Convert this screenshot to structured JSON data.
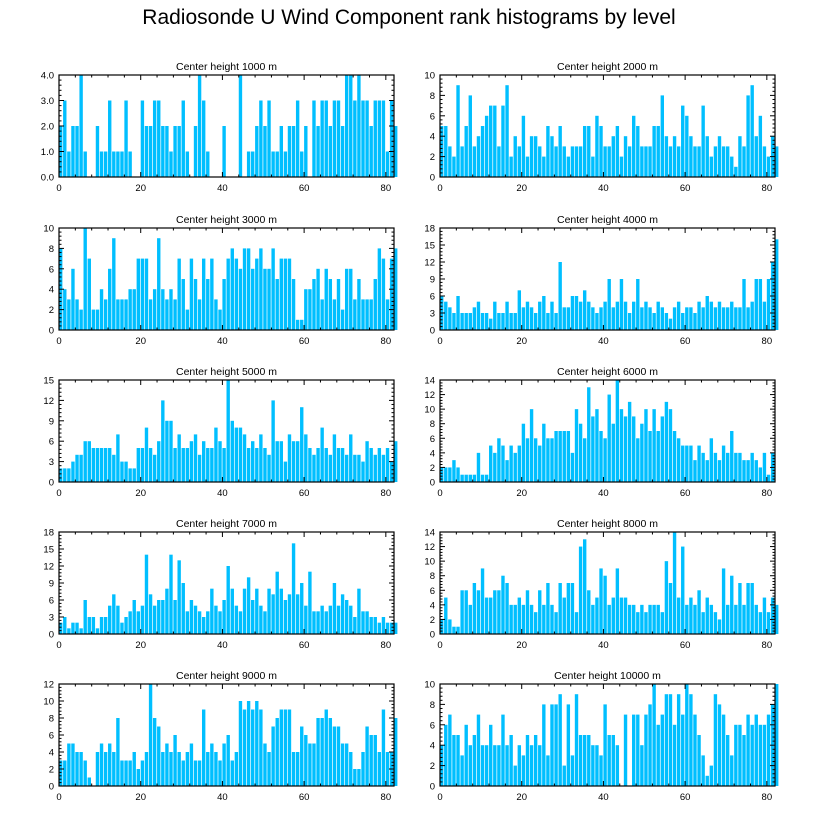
{
  "page": {
    "title": "Radiosonde U Wind Component rank histograms by level"
  },
  "colors": {
    "bar": "#00bfff",
    "axis": "#000000",
    "background": "#ffffff"
  },
  "chart_data": [
    {
      "type": "bar",
      "title": "Center height 1000 m",
      "xlim": [
        0,
        82
      ],
      "xticks": [
        0,
        20,
        40,
        60,
        80
      ],
      "ylim": [
        0,
        4
      ],
      "yticks": [
        0.0,
        1.0,
        2.0,
        3.0,
        4.0
      ],
      "ytick_labels": [
        "0.0",
        "1.0",
        "2.0",
        "3.0",
        "4.0"
      ],
      "values": [
        2,
        3,
        1,
        2,
        2,
        4,
        1,
        0,
        0,
        2,
        1,
        1,
        3,
        1,
        1,
        1,
        3,
        1,
        0,
        0,
        3,
        2,
        2,
        3,
        3,
        2,
        2,
        1,
        2,
        2,
        3,
        1,
        0,
        2,
        4,
        3,
        1,
        0,
        0,
        0,
        2,
        0,
        0,
        0,
        4,
        0,
        1,
        1,
        2,
        3,
        2,
        3,
        1,
        1,
        2,
        1,
        2,
        2,
        3,
        1,
        2,
        0,
        3,
        2,
        3,
        3,
        2,
        3,
        3,
        2,
        4,
        4,
        3,
        4,
        3,
        3,
        2,
        3,
        3,
        3,
        1,
        3,
        2
      ]
    },
    {
      "type": "bar",
      "title": "Center height 2000 m",
      "xlim": [
        0,
        82
      ],
      "xticks": [
        0,
        20,
        40,
        60,
        80
      ],
      "ylim": [
        0,
        10
      ],
      "yticks": [
        0,
        2,
        4,
        6,
        8,
        10
      ],
      "ytick_labels": [
        "0",
        "2",
        "4",
        "6",
        "8",
        "10"
      ],
      "values": [
        5,
        5,
        3,
        2,
        9,
        3,
        5,
        8,
        3,
        4,
        5,
        6,
        7,
        7,
        3,
        7,
        9,
        2,
        4,
        3,
        6,
        2,
        4,
        4,
        3,
        2,
        5,
        4,
        3,
        5,
        3,
        2,
        3,
        3,
        3,
        5,
        5,
        2,
        6,
        5,
        3,
        3,
        4,
        5,
        2,
        4,
        3,
        6,
        5,
        3,
        3,
        3,
        5,
        5,
        8,
        4,
        3,
        4,
        3,
        7,
        6,
        4,
        3,
        3,
        7,
        4,
        2,
        3,
        4,
        3,
        3,
        2,
        1,
        4,
        3,
        8,
        9,
        4,
        6,
        3,
        2,
        4,
        3
      ]
    },
    {
      "type": "bar",
      "title": "Center height 3000 m",
      "xlim": [
        0,
        82
      ],
      "xticks": [
        0,
        20,
        40,
        60,
        80
      ],
      "ylim": [
        0,
        10
      ],
      "yticks": [
        0,
        2,
        4,
        6,
        8,
        10
      ],
      "ytick_labels": [
        "0",
        "2",
        "4",
        "6",
        "8",
        "10"
      ],
      "values": [
        8,
        4,
        3,
        6,
        3,
        2,
        10,
        7,
        2,
        2,
        4,
        3,
        6,
        9,
        3,
        3,
        3,
        4,
        4,
        7,
        7,
        7,
        3,
        4,
        9,
        4,
        3,
        4,
        3,
        7,
        5,
        2,
        7,
        5,
        3,
        7,
        5,
        7,
        3,
        2,
        5,
        7,
        8,
        7,
        6,
        8,
        8,
        6,
        7,
        8,
        6,
        6,
        8,
        5,
        7,
        7,
        7,
        5,
        1,
        1,
        4,
        4,
        5,
        6,
        3,
        6,
        5,
        3,
        5,
        2,
        6,
        6,
        3,
        5,
        3,
        3,
        3,
        5,
        8,
        7,
        3,
        7,
        8
      ]
    },
    {
      "type": "bar",
      "title": "Center height 4000 m",
      "xlim": [
        0,
        82
      ],
      "xticks": [
        0,
        20,
        40,
        60,
        80
      ],
      "ylim": [
        0,
        18
      ],
      "yticks": [
        0,
        3,
        6,
        9,
        12,
        15,
        18
      ],
      "ytick_labels": [
        "0",
        "3",
        "6",
        "9",
        "12",
        "15",
        "18"
      ],
      "values": [
        6,
        5,
        4,
        3,
        6,
        3,
        3,
        3,
        4,
        5,
        3,
        3,
        2,
        5,
        3,
        3,
        5,
        3,
        3,
        7,
        4,
        5,
        4,
        3,
        5,
        6,
        3,
        5,
        3,
        12,
        4,
        4,
        6,
        6,
        5,
        7,
        5,
        4,
        3,
        4,
        5,
        9,
        4,
        5,
        9,
        5,
        3,
        5,
        9,
        4,
        5,
        4,
        3,
        5,
        4,
        3,
        2,
        4,
        5,
        3,
        4,
        4,
        3,
        5,
        4,
        6,
        5,
        4,
        5,
        4,
        4,
        5,
        4,
        4,
        9,
        4,
        5,
        9,
        9,
        5,
        9,
        12,
        16
      ]
    },
    {
      "type": "bar",
      "title": "Center height 5000 m",
      "xlim": [
        0,
        82
      ],
      "xticks": [
        0,
        20,
        40,
        60,
        80
      ],
      "ylim": [
        0,
        15
      ],
      "yticks": [
        0,
        3,
        6,
        9,
        12,
        15
      ],
      "ytick_labels": [
        "0",
        "3",
        "6",
        "9",
        "12",
        "15"
      ],
      "values": [
        2,
        2,
        2,
        3,
        4,
        4,
        6,
        6,
        5,
        5,
        5,
        5,
        5,
        4,
        7,
        3,
        3,
        2,
        2,
        5,
        5,
        8,
        5,
        4,
        6,
        12,
        9,
        9,
        5,
        7,
        5,
        5,
        6,
        7,
        4,
        6,
        5,
        5,
        8,
        6,
        5,
        15,
        9,
        8,
        8,
        7,
        5,
        6,
        5,
        7,
        5,
        4,
        12,
        6,
        6,
        3,
        7,
        6,
        6,
        11,
        7,
        5,
        4,
        5,
        8,
        5,
        4,
        7,
        5,
        5,
        4,
        7,
        4,
        4,
        3,
        6,
        5,
        4,
        5,
        4,
        5,
        3,
        6
      ]
    },
    {
      "type": "bar",
      "title": "Center height 6000 m",
      "xlim": [
        0,
        82
      ],
      "xticks": [
        0,
        20,
        40,
        60,
        80
      ],
      "ylim": [
        0,
        14
      ],
      "yticks": [
        0,
        2,
        4,
        6,
        8,
        10,
        12,
        14
      ],
      "ytick_labels": [
        "0",
        "2",
        "4",
        "6",
        "8",
        "10",
        "12",
        "14"
      ],
      "values": [
        2,
        2,
        2,
        3,
        2,
        1,
        1,
        1,
        1,
        4,
        1,
        1,
        5,
        4,
        6,
        5,
        3,
        5,
        4,
        5,
        8,
        6,
        10,
        6,
        5,
        8,
        6,
        6,
        7,
        7,
        7,
        7,
        4,
        10,
        8,
        6,
        13,
        9,
        10,
        7,
        6,
        12,
        8,
        14,
        10,
        9,
        11,
        9,
        6,
        8,
        10,
        7,
        10,
        7,
        9,
        11,
        10,
        7,
        6,
        5,
        5,
        5,
        3,
        5,
        4,
        3,
        6,
        4,
        3,
        5,
        4,
        7,
        4,
        4,
        3,
        3,
        4,
        3,
        2,
        4,
        1,
        4,
        0
      ]
    },
    {
      "type": "bar",
      "title": "Center height 7000 m",
      "xlim": [
        0,
        82
      ],
      "xticks": [
        0,
        20,
        40,
        60,
        80
      ],
      "ylim": [
        0,
        18
      ],
      "yticks": [
        0,
        3,
        6,
        9,
        12,
        15,
        18
      ],
      "ytick_labels": [
        "0",
        "3",
        "6",
        "9",
        "12",
        "15",
        "18"
      ],
      "values": [
        2,
        3,
        1,
        2,
        2,
        1,
        6,
        3,
        3,
        1,
        3,
        3,
        5,
        7,
        5,
        2,
        3,
        4,
        6,
        4,
        5,
        14,
        7,
        5,
        6,
        6,
        8,
        14,
        6,
        13,
        9,
        4,
        6,
        5,
        4,
        3,
        4,
        8,
        5,
        4,
        6,
        12,
        8,
        5,
        4,
        8,
        10,
        6,
        8,
        5,
        4,
        8,
        7,
        11,
        8,
        6,
        7,
        16,
        7,
        9,
        5,
        11,
        4,
        4,
        5,
        4,
        5,
        9,
        5,
        7,
        6,
        5,
        3,
        8,
        4,
        4,
        3,
        3,
        2,
        3,
        2,
        2,
        2
      ]
    },
    {
      "type": "bar",
      "title": "Center height 8000 m",
      "xlim": [
        0,
        82
      ],
      "xticks": [
        0,
        20,
        40,
        60,
        80
      ],
      "ylim": [
        0,
        14
      ],
      "yticks": [
        0,
        2,
        4,
        6,
        8,
        10,
        12,
        14
      ],
      "ytick_labels": [
        "0",
        "2",
        "4",
        "6",
        "8",
        "10",
        "12",
        "14"
      ],
      "values": [
        2,
        5,
        2,
        1,
        1,
        6,
        6,
        4,
        7,
        6,
        9,
        5,
        5,
        6,
        6,
        8,
        7,
        4,
        4,
        5,
        4,
        6,
        4,
        3,
        6,
        4,
        7,
        4,
        3,
        7,
        5,
        7,
        7,
        3,
        12,
        13,
        6,
        4,
        5,
        9,
        8,
        4,
        5,
        9,
        5,
        5,
        4,
        4,
        3,
        4,
        3,
        4,
        4,
        4,
        3,
        10,
        7,
        14,
        5,
        12,
        4,
        5,
        4,
        6,
        3,
        5,
        4,
        3,
        2,
        9,
        4,
        8,
        4,
        7,
        4,
        7,
        7,
        4,
        3,
        5,
        3,
        5,
        4
      ]
    },
    {
      "type": "bar",
      "title": "Center height 9000 m",
      "xlim": [
        0,
        82
      ],
      "xticks": [
        0,
        20,
        40,
        60,
        80
      ],
      "ylim": [
        0,
        12
      ],
      "yticks": [
        0,
        2,
        4,
        6,
        8,
        10,
        12
      ],
      "ytick_labels": [
        "0",
        "2",
        "4",
        "6",
        "8",
        "10",
        "12"
      ],
      "values": [
        3,
        3,
        5,
        5,
        4,
        4,
        3,
        1,
        0,
        4,
        5,
        4,
        5,
        4,
        8,
        3,
        3,
        3,
        4,
        2,
        3,
        4,
        12,
        8,
        7,
        4,
        5,
        4,
        6,
        4,
        3,
        4,
        5,
        3,
        3,
        9,
        4,
        5,
        4,
        3,
        5,
        6,
        3,
        4,
        10,
        9,
        10,
        9,
        10,
        9,
        5,
        4,
        7,
        8,
        9,
        9,
        9,
        4,
        4,
        7,
        6,
        5,
        5,
        8,
        8,
        9,
        8,
        7,
        7,
        5,
        5,
        4,
        2,
        2,
        4,
        7,
        6,
        6,
        4,
        9,
        4,
        4,
        8
      ]
    },
    {
      "type": "bar",
      "title": "Center height 10000 m",
      "xlim": [
        0,
        82
      ],
      "xticks": [
        0,
        20,
        40,
        60,
        80
      ],
      "ylim": [
        0,
        10
      ],
      "yticks": [
        0,
        2,
        4,
        6,
        8,
        10
      ],
      "ytick_labels": [
        "0",
        "2",
        "4",
        "6",
        "8",
        "10"
      ],
      "values": [
        4,
        6,
        7,
        5,
        5,
        3,
        6,
        4,
        5,
        7,
        4,
        4,
        6,
        4,
        4,
        7,
        4,
        5,
        2,
        4,
        3,
        5,
        4,
        5,
        4,
        8,
        3,
        8,
        8,
        9,
        2,
        8,
        3,
        9,
        5,
        5,
        5,
        4,
        4,
        3,
        8,
        5,
        5,
        4,
        0,
        7,
        0,
        7,
        7,
        4,
        7,
        8,
        10,
        6,
        7,
        9,
        9,
        6,
        9,
        7,
        10,
        9,
        7,
        5,
        3,
        1,
        2,
        9,
        8,
        7,
        5,
        3,
        6,
        6,
        5,
        7,
        6,
        7,
        6,
        6,
        7,
        8,
        10
      ]
    }
  ]
}
